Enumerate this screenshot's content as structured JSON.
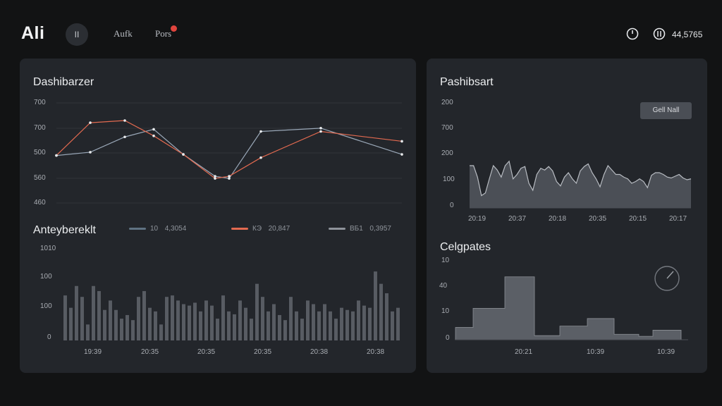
{
  "header": {
    "brand": "Ali",
    "pill": "II",
    "nav": [
      "Aufk",
      "Pors"
    ],
    "count": "44,5765",
    "icons": [
      "clock-icon",
      "stack-icon"
    ]
  },
  "left_card": {
    "line_title": "Dashibarzer",
    "line_yticks": [
      "700",
      "700",
      "500",
      "560",
      "460"
    ],
    "bar_title": "Anteybereklt",
    "legend": [
      {
        "code": "10",
        "value": "4,3054",
        "color": "#5f7282"
      },
      {
        "code": "КЭ",
        "value": "20,847",
        "color": "#e36a50"
      },
      {
        "code": "ВБ1",
        "value": "0,3957",
        "color": "#8e939a"
      }
    ],
    "bar_yticks": [
      "1010",
      "100",
      "100",
      "0"
    ],
    "bar_xticks": [
      "19:39",
      "20:35",
      "20:35",
      "20:35",
      "20:38",
      "20:38"
    ]
  },
  "right_card": {
    "area_title": "Pashibsart",
    "segment": "Gell  Nall",
    "area_yticks": [
      "200",
      "700",
      "200",
      "100",
      "0"
    ],
    "area_xticks": [
      "20:19",
      "20:37",
      "20:18",
      "20:35",
      "20:15",
      "20:17"
    ],
    "step_title": "Celgpates",
    "step_yticks": [
      "10",
      "40",
      "10",
      "0"
    ],
    "step_xticks": [
      "20:21",
      "10:39",
      "10:39"
    ]
  },
  "chart_data": [
    {
      "type": "line",
      "title": "Dashibarzer",
      "series": [
        {
          "color": "#9aa8b8",
          "values": [
            0.52,
            0.49,
            0.35,
            0.28,
            0.51,
            0.71,
            0.73,
            0.3,
            0.27,
            0.51
          ]
        },
        {
          "color": "#e36a50",
          "values": [
            0.52,
            0.22,
            0.2,
            0.34,
            0.51,
            0.73,
            0.71,
            0.54,
            0.3,
            0.39
          ]
        }
      ]
    },
    {
      "type": "bar",
      "title": "Anteybereklt",
      "values": [
        0.62,
        0.45,
        0.75,
        0.6,
        0.22,
        0.75,
        0.68,
        0.42,
        0.55,
        0.42,
        0.3,
        0.35,
        0.28,
        0.6,
        0.68,
        0.45,
        0.4,
        0.22,
        0.6,
        0.62,
        0.55,
        0.5,
        0.48,
        0.52,
        0.4,
        0.55,
        0.48,
        0.3,
        0.62,
        0.4,
        0.36,
        0.55,
        0.45,
        0.3,
        0.78,
        0.6,
        0.4,
        0.5,
        0.35,
        0.28,
        0.6,
        0.4,
        0.3,
        0.55,
        0.5,
        0.4,
        0.5,
        0.4,
        0.3,
        0.45,
        0.42,
        0.4,
        0.55,
        0.48,
        0.45,
        0.95,
        0.78,
        0.65,
        0.4,
        0.45
      ],
      "ylim": [
        0,
        1
      ]
    },
    {
      "type": "area",
      "title": "Pashibsart",
      "values": [
        0.48,
        0.48,
        0.35,
        0.14,
        0.17,
        0.33,
        0.48,
        0.43,
        0.35,
        0.48,
        0.53,
        0.33,
        0.38,
        0.45,
        0.47,
        0.28,
        0.2,
        0.38,
        0.45,
        0.43,
        0.47,
        0.42,
        0.3,
        0.25,
        0.35,
        0.4,
        0.33,
        0.28,
        0.42,
        0.47,
        0.5,
        0.4,
        0.33,
        0.24,
        0.38,
        0.48,
        0.43,
        0.38,
        0.38,
        0.35,
        0.33,
        0.28,
        0.3,
        0.33,
        0.3,
        0.23,
        0.37,
        0.4,
        0.4,
        0.38,
        0.35,
        0.34,
        0.36,
        0.38,
        0.34,
        0.32,
        0.33
      ],
      "ylim": [
        0,
        1
      ]
    },
    {
      "type": "area",
      "title": "Celgpates",
      "values": [
        0.18,
        0.46,
        0.92,
        0.06,
        0.2,
        0.31,
        0.08,
        0.05,
        0.14
      ],
      "ylim": [
        0,
        1
      ]
    }
  ]
}
